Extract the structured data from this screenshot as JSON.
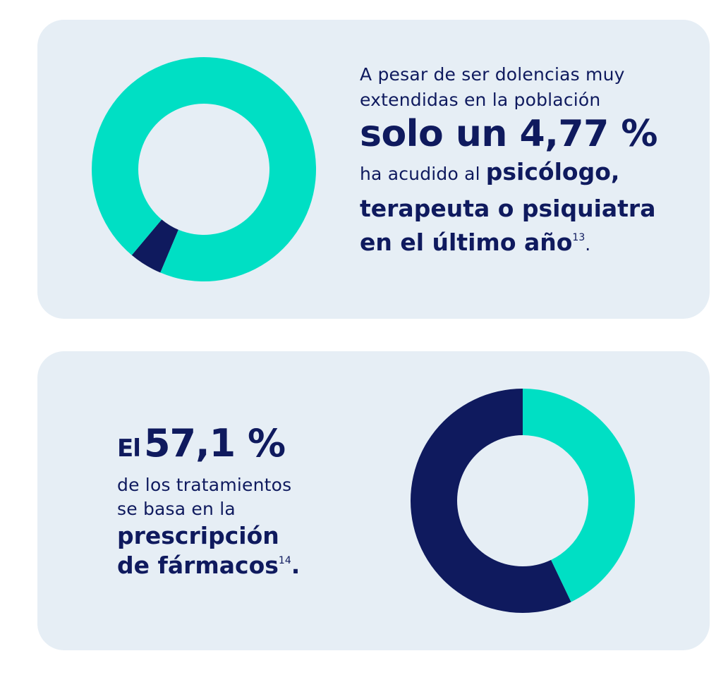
{
  "colors": {
    "card_bg": "#e6eef5",
    "teal": "#00dfc4",
    "navy": "#0f1a5e"
  },
  "panel1": {
    "line1": "A pesar de ser dolencias muy",
    "line2": "extendidas en la población",
    "highlight": "solo un 4,77 %",
    "line3_prefix": "ha acudido al",
    "line3_bold": "psicólogo,",
    "line4": "terapeuta o psiquiatra",
    "line5": "en el último año",
    "footnote": "13",
    "trail": "."
  },
  "panel2": {
    "el": "El",
    "stat": "57,1 %",
    "line1": "de los tratamientos",
    "line2": "se basa en la",
    "line3": "prescripción",
    "line4": "de fármacos",
    "footnote": "14",
    "trail": "."
  },
  "chart_data": [
    {
      "type": "pie",
      "donut": true,
      "values": [
        4.77,
        95.23
      ],
      "colors": [
        "#0f1a5e",
        "#00dfc4"
      ]
    },
    {
      "type": "pie",
      "donut": true,
      "values": [
        57.1,
        42.9
      ],
      "colors": [
        "#0f1a5e",
        "#00dfc4"
      ]
    }
  ]
}
